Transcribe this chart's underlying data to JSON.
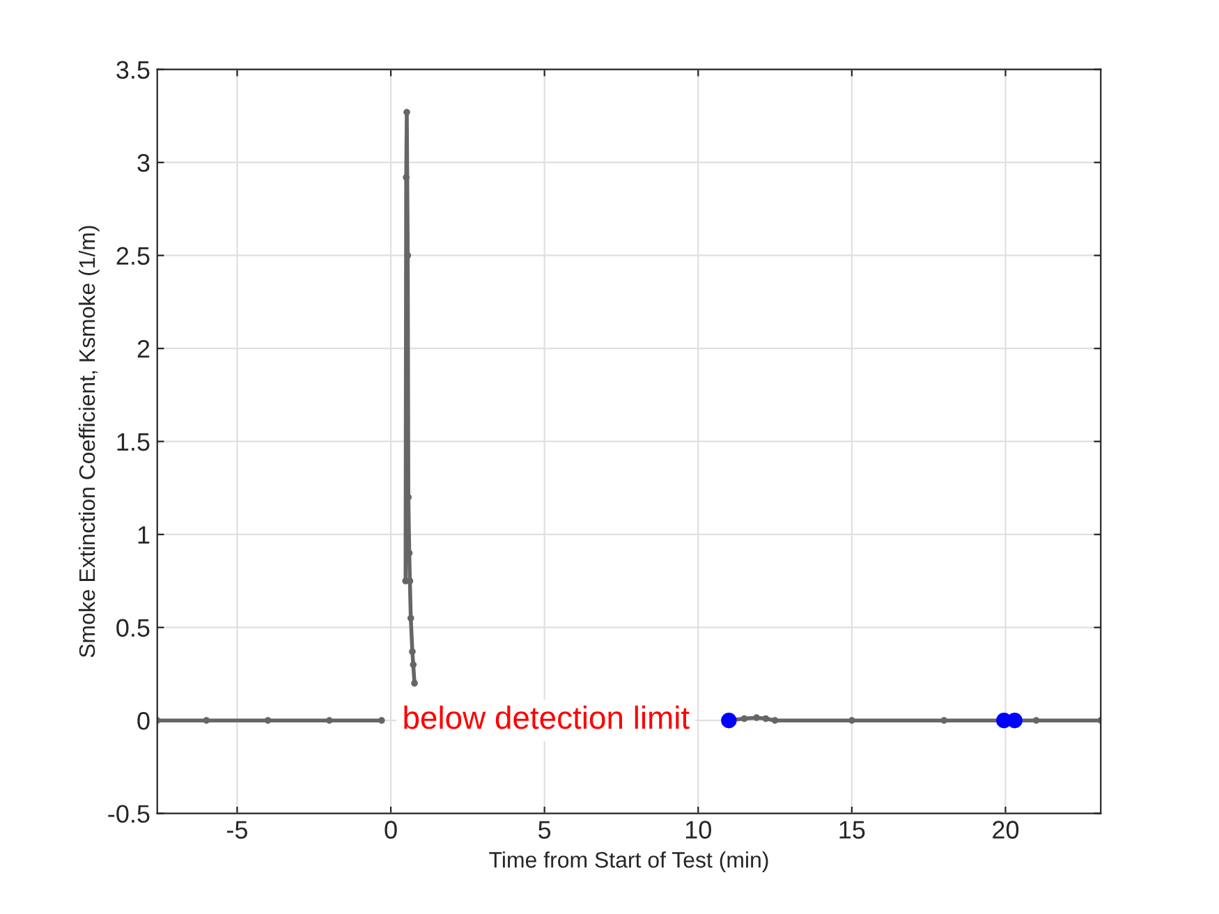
{
  "chart_data": {
    "type": "line",
    "xlabel": "Time from Start of Test (min)",
    "ylabel": "Smoke Extinction Coefficient, Ksmoke (1/m)",
    "series": [
      {
        "color": "#666666",
        "marker": "circle",
        "line_style": "solid",
        "x": [
          -7.6,
          -6,
          -4,
          -2,
          -0.3,
          0.2,
          0.48,
          0.5,
          0.52,
          0.55,
          0.57,
          0.6,
          0.62,
          0.65,
          0.7,
          0.73,
          0.77,
          5,
          11.0,
          11.5,
          11.9,
          12.2,
          12.5,
          15,
          18,
          21,
          23.1
        ],
        "values": [
          0,
          0,
          0,
          0,
          0,
          null,
          0.75,
          2.92,
          3.27,
          2.5,
          1.2,
          0.9,
          0.75,
          0.55,
          0.37,
          0.3,
          0.2,
          null,
          0,
          0.01,
          0.015,
          0.01,
          0,
          0,
          0,
          0,
          0
        ]
      },
      {
        "type": "scatter",
        "color": "#0000ff",
        "marker": "circle",
        "x": [
          11.0,
          19.95,
          20.3
        ],
        "values": [
          0,
          0,
          0
        ]
      }
    ],
    "annotations": [
      "below detection limit"
    ],
    "xlim": [
      -7.6,
      23.1
    ],
    "xticks": [
      -5,
      0,
      5,
      10,
      15,
      20
    ],
    "ylim": [
      -0.5,
      3.5
    ],
    "yticks": [
      -0.5,
      0,
      0.5,
      1,
      1.5,
      2,
      2.5,
      3,
      3.5
    ],
    "grid": true
  }
}
